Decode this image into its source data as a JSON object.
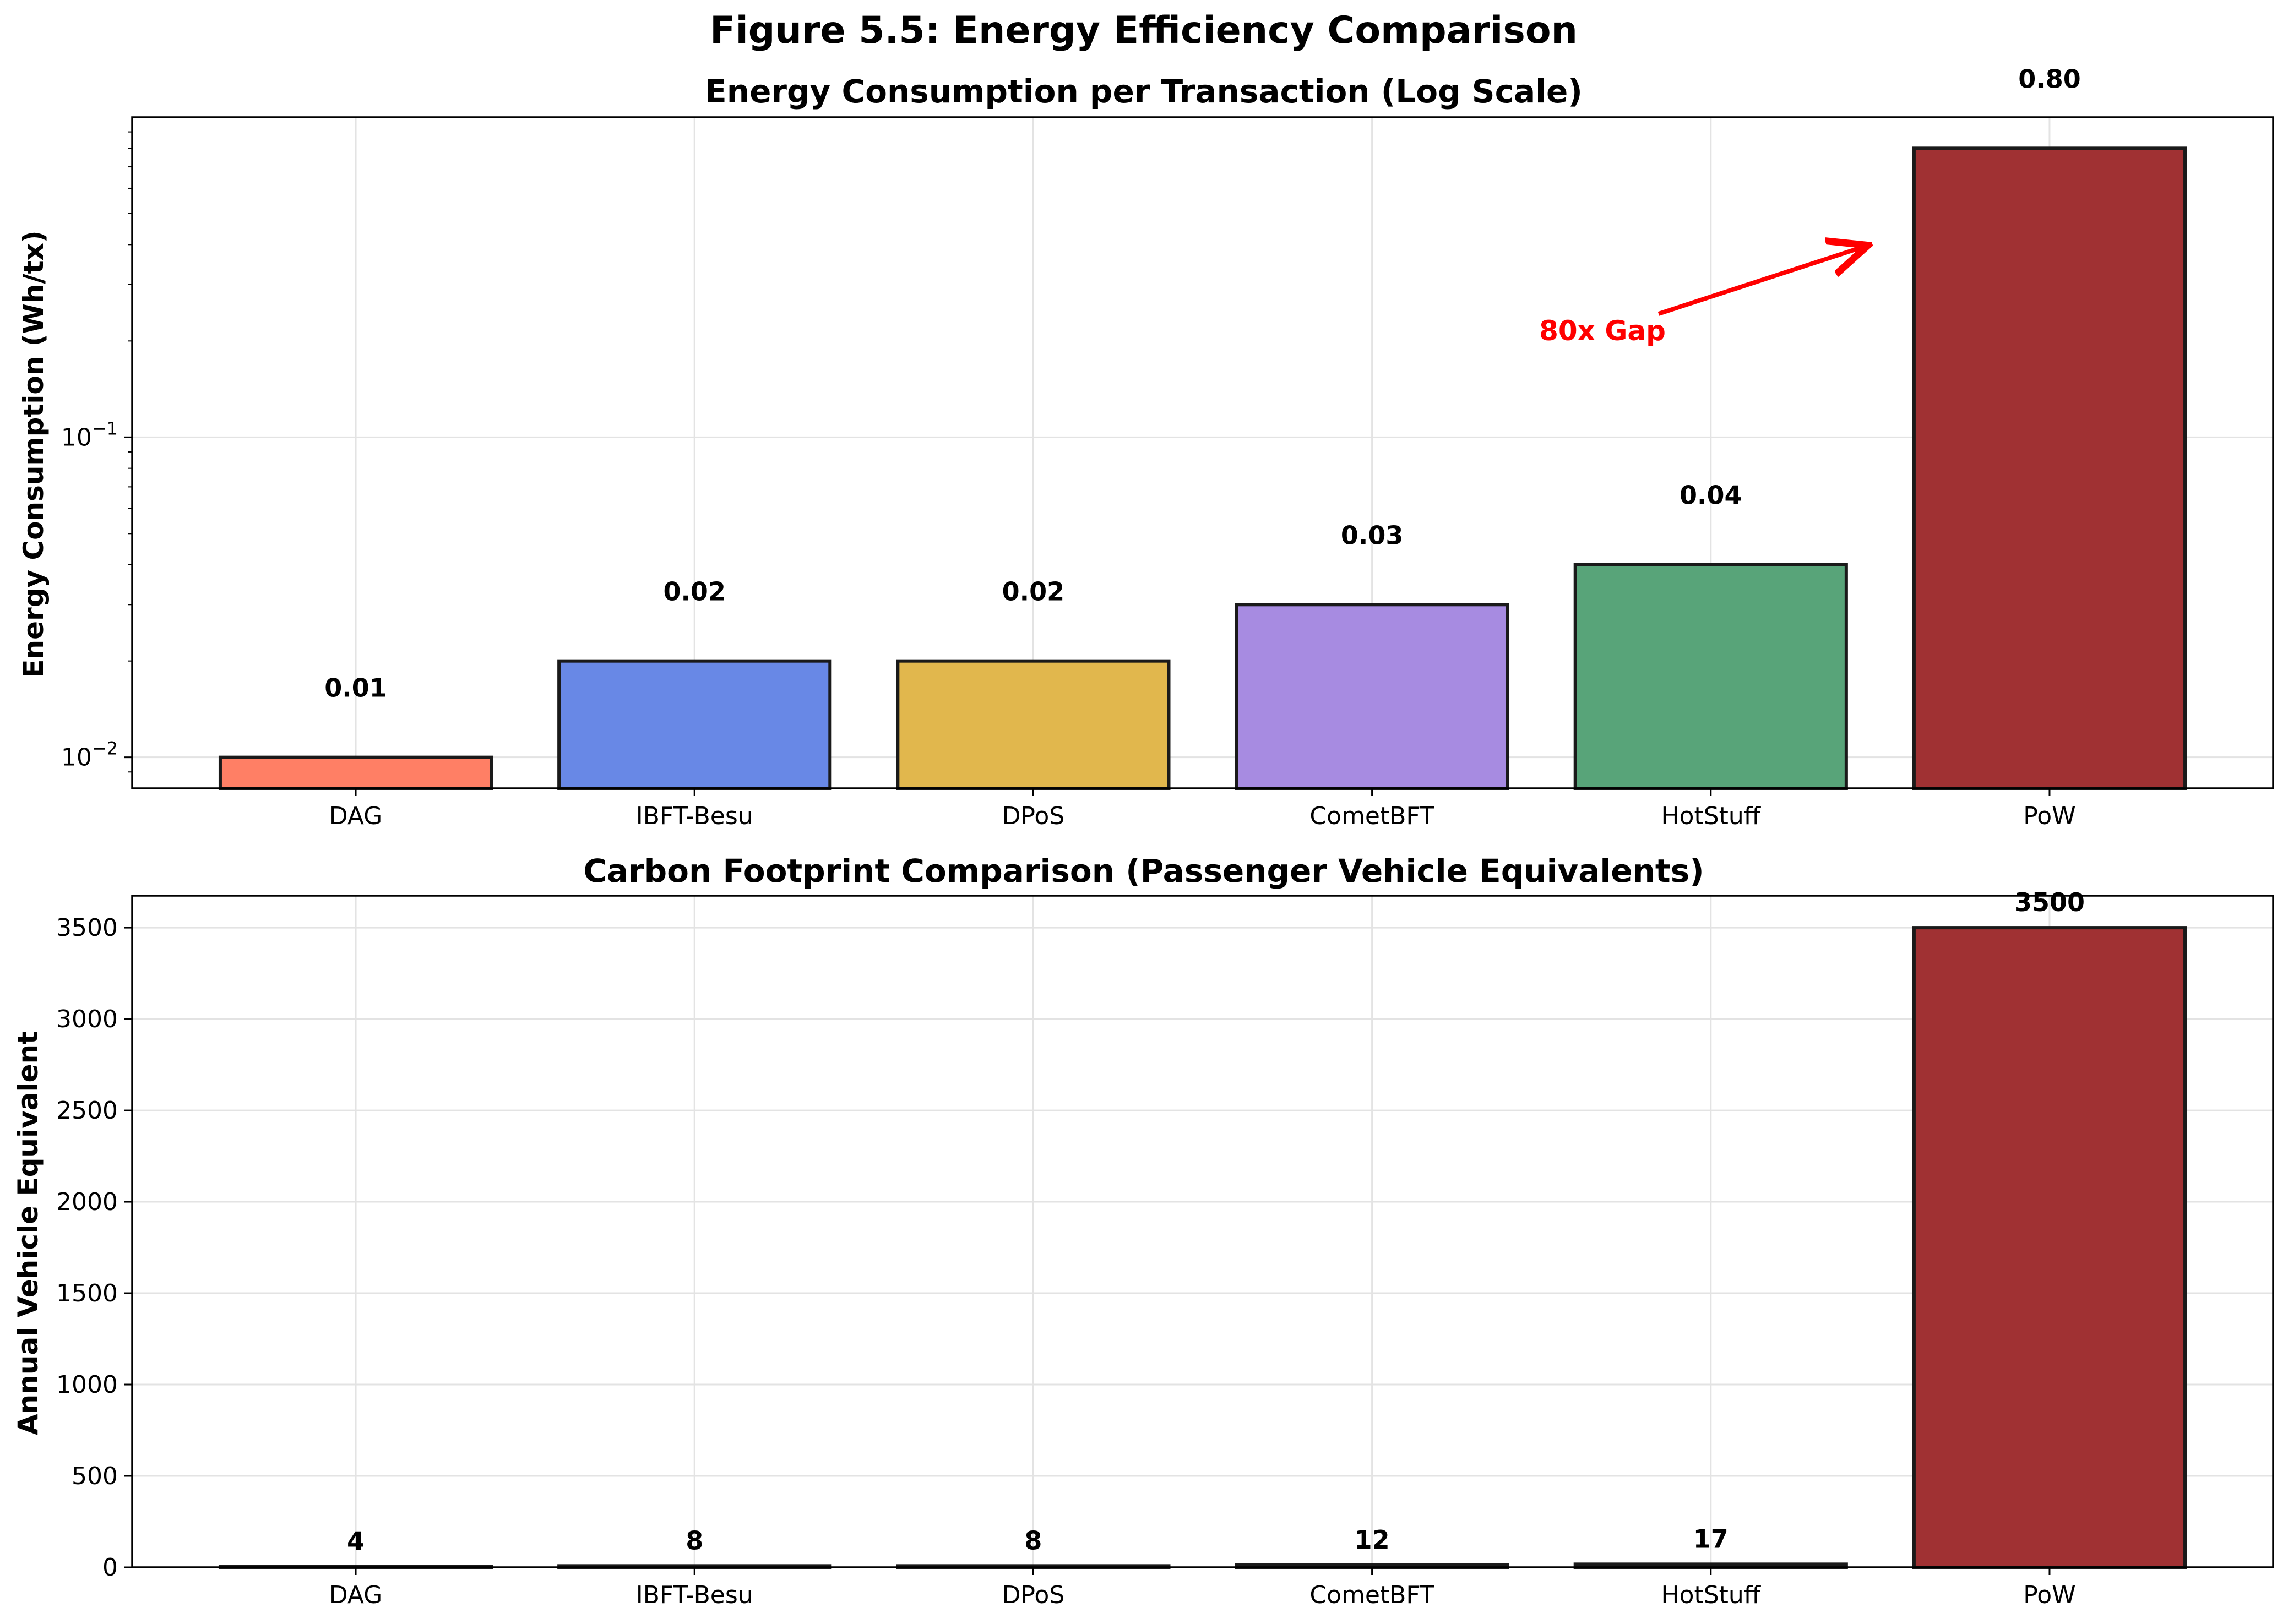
{
  "figure": {
    "title": "Figure 5.5: Energy Efficiency Comparison"
  },
  "chart_data": [
    {
      "type": "bar",
      "title": "Energy Consumption per Transaction (Log Scale)",
      "xlabel": "",
      "ylabel": "Energy Consumption (Wh/tx)",
      "yscale": "log",
      "ylim": [
        0.008,
        1.0
      ],
      "yticks": [
        0.01,
        0.1
      ],
      "ytick_labels": [
        {
          "base": "10",
          "exp": "−2"
        },
        {
          "base": "10",
          "exp": "−1"
        }
      ],
      "grid": true,
      "categories": [
        "DAG",
        "IBFT-Besu",
        "DPoS",
        "CometBFT",
        "HotStuff",
        "PoW"
      ],
      "values": [
        0.01,
        0.02,
        0.02,
        0.03,
        0.04,
        0.8
      ],
      "value_labels": [
        "0.01",
        "0.02",
        "0.02",
        "0.03",
        "0.04",
        "0.80"
      ],
      "colors": [
        "#ff7f65",
        "#6888e6",
        "#e1b74d",
        "#a78be1",
        "#58a479",
        "#a03133"
      ],
      "annotation": {
        "text": "80x Gap",
        "color": "#ff0000",
        "from": [
          3.72,
          0.205
        ],
        "to": [
          4.5,
          0.4
        ]
      }
    },
    {
      "type": "bar",
      "title": "Carbon Footprint Comparison (Passenger Vehicle Equivalents)",
      "xlabel": "",
      "ylabel": "Annual Vehicle Equivalent",
      "yscale": "linear",
      "ylim": [
        0,
        3675
      ],
      "yticks": [
        0,
        500,
        1000,
        1500,
        2000,
        2500,
        3000,
        3500
      ],
      "ytick_labels": [
        "0",
        "500",
        "1000",
        "1500",
        "2000",
        "2500",
        "3000",
        "3500"
      ],
      "grid": true,
      "categories": [
        "DAG",
        "IBFT-Besu",
        "DPoS",
        "CometBFT",
        "HotStuff",
        "PoW"
      ],
      "values": [
        4,
        8,
        8,
        12,
        17,
        3500
      ],
      "value_labels": [
        "4",
        "8",
        "8",
        "12",
        "17",
        "3500"
      ],
      "colors": [
        "#ff7f65",
        "#6888e6",
        "#e1b74d",
        "#a78be1",
        "#58a479",
        "#a03133"
      ]
    }
  ]
}
